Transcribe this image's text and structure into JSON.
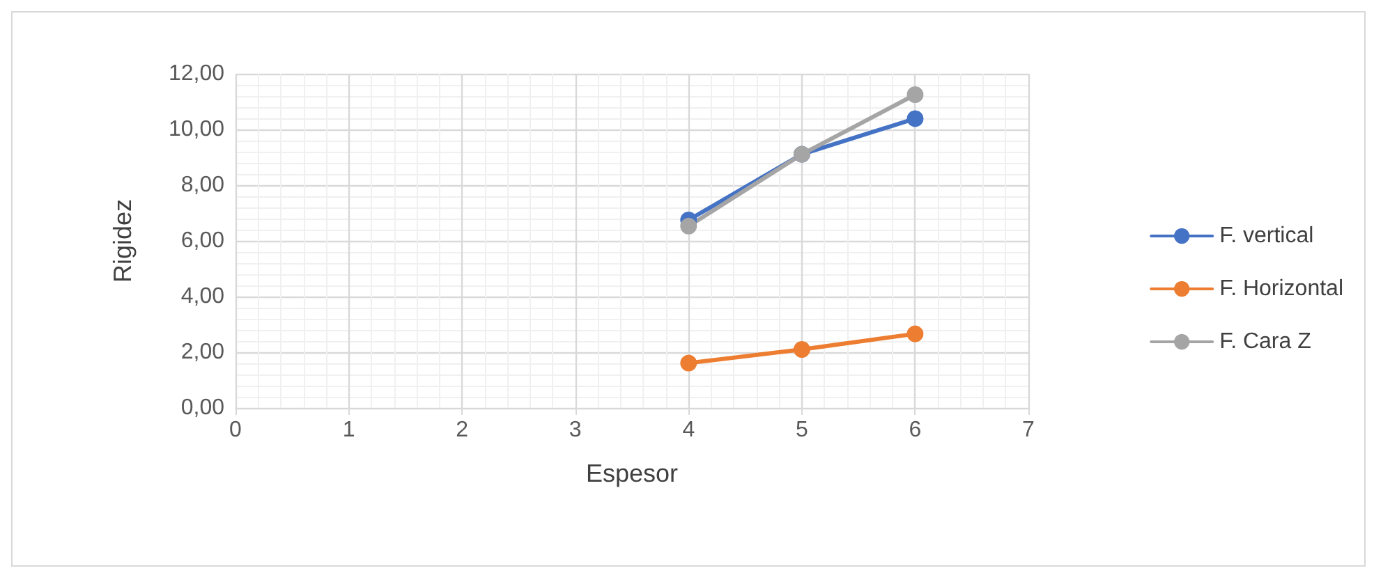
{
  "chart_data": {
    "type": "line",
    "xlabel": "Espesor",
    "ylabel": "Rigidez",
    "x": [
      4,
      5,
      6
    ],
    "series": [
      {
        "name": "F. vertical",
        "color": "#4472c4",
        "values": [
          6.75,
          9.11,
          10.39
        ]
      },
      {
        "name": "F. Horizontal",
        "color": "#ed7d31",
        "values": [
          1.61,
          2.1,
          2.66
        ]
      },
      {
        "name": "F. Cara Z",
        "color": "#a5a5a5",
        "values": [
          6.53,
          9.11,
          11.25
        ]
      }
    ],
    "xlim": [
      0,
      7
    ],
    "xticks": [
      0,
      1,
      2,
      3,
      4,
      5,
      6,
      7
    ],
    "ylim": [
      0,
      12
    ],
    "yticks": [
      {
        "value": 0,
        "label": "0,00"
      },
      {
        "value": 2,
        "label": "2,00"
      },
      {
        "value": 4,
        "label": "4,00"
      },
      {
        "value": 6,
        "label": "6,00"
      },
      {
        "value": 8,
        "label": "8,00"
      },
      {
        "value": 10,
        "label": "10,00"
      },
      {
        "value": 12,
        "label": "12,00"
      }
    ],
    "grid": true,
    "legend": "right",
    "marker": "circle",
    "line_style": "solid"
  }
}
